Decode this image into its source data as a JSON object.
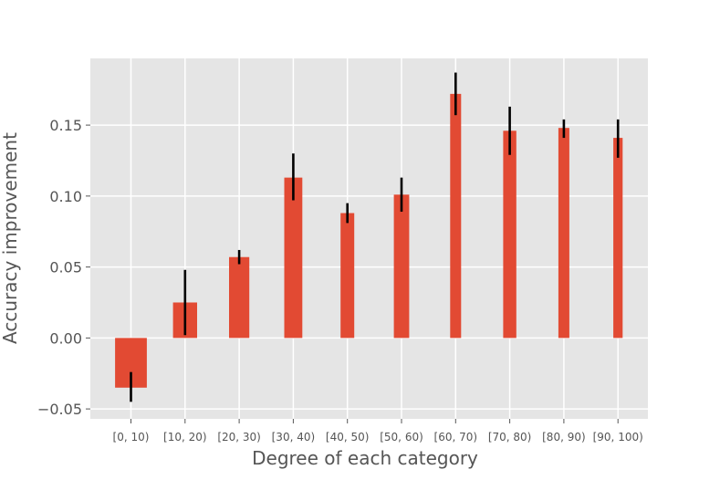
{
  "chart_data": {
    "type": "bar",
    "title": "",
    "xlabel": "Degree of each category",
    "ylabel": "Accuracy improvement",
    "categories": [
      "[0, 10)",
      "[10, 20)",
      "[20, 30)",
      "[30, 40)",
      "[40, 50)",
      "[50, 60)",
      "[60, 70)",
      "[70, 80)",
      "[80, 90)",
      "[90, 100)"
    ],
    "values": [
      -0.035,
      0.025,
      0.057,
      0.113,
      0.088,
      0.101,
      0.172,
      0.146,
      0.148,
      0.141
    ],
    "error_low": [
      -0.045,
      0.002,
      0.052,
      0.097,
      0.081,
      0.089,
      0.157,
      0.129,
      0.141,
      0.127
    ],
    "error_high": [
      -0.024,
      0.048,
      0.062,
      0.13,
      0.095,
      0.113,
      0.187,
      0.163,
      0.154,
      0.154
    ],
    "relative_widths": [
      0.58,
      0.44,
      0.37,
      0.33,
      0.25,
      0.28,
      0.2,
      0.24,
      0.2,
      0.17
    ],
    "yticks": [
      -0.05,
      0.0,
      0.05,
      0.1,
      0.15
    ],
    "ytick_labels": [
      "−0.05",
      "0.00",
      "0.05",
      "0.10",
      "0.15"
    ],
    "ylim": [
      -0.057,
      0.197
    ],
    "grid": true,
    "colors": {
      "bar": "#e24a33",
      "error_bar": "#000000",
      "plot_background": "#e5e5e5",
      "grid": "#ffffff",
      "text": "#555555"
    }
  }
}
